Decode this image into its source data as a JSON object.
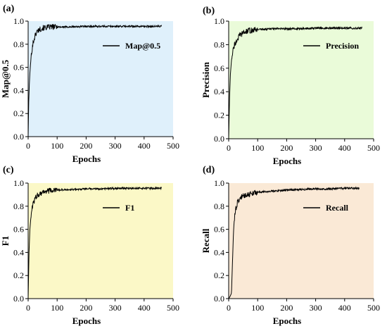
{
  "chart_data": [
    {
      "panel_label": "(a)",
      "type": "line",
      "background": "#dff0fb",
      "xlabel": "Epochs",
      "ylabel": "Map@0.5",
      "xlim": [
        0,
        500
      ],
      "ylim": [
        0,
        1.0
      ],
      "xticks": [
        "0",
        "100",
        "200",
        "300",
        "400",
        "500"
      ],
      "yticks": [
        "0.0",
        "0.2",
        "0.4",
        "0.6",
        "0.8",
        "1.0"
      ],
      "grid": false,
      "legend_position": "top-right",
      "series": [
        {
          "name": "Map@0.5",
          "color": "#000000",
          "x": [
            0,
            2,
            4,
            6,
            8,
            10,
            13,
            16,
            20,
            25,
            30,
            40,
            50,
            60,
            80,
            100,
            150,
            200,
            250,
            300,
            350,
            400,
            460
          ],
          "y": [
            0.0,
            0.3,
            0.45,
            0.55,
            0.62,
            0.68,
            0.75,
            0.8,
            0.84,
            0.88,
            0.91,
            0.93,
            0.94,
            0.945,
            0.95,
            0.95,
            0.95,
            0.955,
            0.955,
            0.955,
            0.955,
            0.955,
            0.955
          ]
        }
      ]
    },
    {
      "panel_label": "(b)",
      "type": "line",
      "background": "#eafbd9",
      "xlabel": "Epochs",
      "ylabel": "Precision",
      "xlim": [
        0,
        500
      ],
      "ylim": [
        0,
        1.0
      ],
      "xticks": [
        "0",
        "100",
        "200",
        "300",
        "400",
        "500"
      ],
      "yticks": [
        "0.0",
        "0.2",
        "0.4",
        "0.6",
        "0.8",
        "1.0"
      ],
      "grid": false,
      "legend_position": "top-right",
      "series": [
        {
          "name": "Precision",
          "color": "#000000",
          "x": [
            0,
            3,
            6,
            10,
            15,
            20,
            25,
            30,
            40,
            50,
            60,
            70,
            80,
            100,
            120,
            150,
            200,
            250,
            300,
            350,
            400,
            460
          ],
          "y": [
            0.0,
            0.35,
            0.55,
            0.68,
            0.75,
            0.8,
            0.82,
            0.85,
            0.88,
            0.9,
            0.91,
            0.92,
            0.92,
            0.93,
            0.93,
            0.935,
            0.935,
            0.935,
            0.94,
            0.94,
            0.94,
            0.94
          ]
        }
      ]
    },
    {
      "panel_label": "(c)",
      "type": "line",
      "background": "#fbf8c7",
      "xlabel": "Epochs",
      "ylabel": "F1",
      "xlim": [
        0,
        500
      ],
      "ylim": [
        0,
        1.0
      ],
      "xticks": [
        "0",
        "100",
        "200",
        "300",
        "400",
        "500"
      ],
      "yticks": [
        "0.0",
        "0.2",
        "0.4",
        "0.6",
        "0.8",
        "1.0"
      ],
      "grid": false,
      "legend_position": "top-right",
      "series": [
        {
          "name": "F1",
          "color": "#000000",
          "x": [
            0,
            3,
            6,
            10,
            15,
            20,
            25,
            30,
            40,
            50,
            60,
            80,
            100,
            150,
            200,
            250,
            300,
            350,
            400,
            460
          ],
          "y": [
            0.0,
            0.4,
            0.6,
            0.72,
            0.8,
            0.84,
            0.87,
            0.89,
            0.91,
            0.92,
            0.93,
            0.935,
            0.94,
            0.945,
            0.95,
            0.95,
            0.955,
            0.955,
            0.955,
            0.955
          ]
        }
      ]
    },
    {
      "panel_label": "(d)",
      "type": "line",
      "background": "#fae9d6",
      "xlabel": "Epochs",
      "ylabel": "Recall",
      "xlim": [
        0,
        500
      ],
      "ylim": [
        0,
        1.0
      ],
      "xticks": [
        "0",
        "100",
        "200",
        "300",
        "400",
        "500"
      ],
      "yticks": [
        "0.0",
        "0.2",
        "0.4",
        "0.6",
        "0.8",
        "1.0"
      ],
      "grid": false,
      "legend_position": "top-right",
      "series": [
        {
          "name": "Recall",
          "color": "#000000",
          "x": [
            0,
            5,
            10,
            13,
            16,
            20,
            25,
            30,
            40,
            50,
            60,
            80,
            100,
            150,
            200,
            250,
            300,
            350,
            400,
            450
          ],
          "y": [
            0.0,
            0.02,
            0.05,
            0.3,
            0.55,
            0.7,
            0.78,
            0.83,
            0.87,
            0.89,
            0.9,
            0.91,
            0.92,
            0.93,
            0.94,
            0.945,
            0.95,
            0.95,
            0.955,
            0.955
          ]
        }
      ]
    }
  ]
}
